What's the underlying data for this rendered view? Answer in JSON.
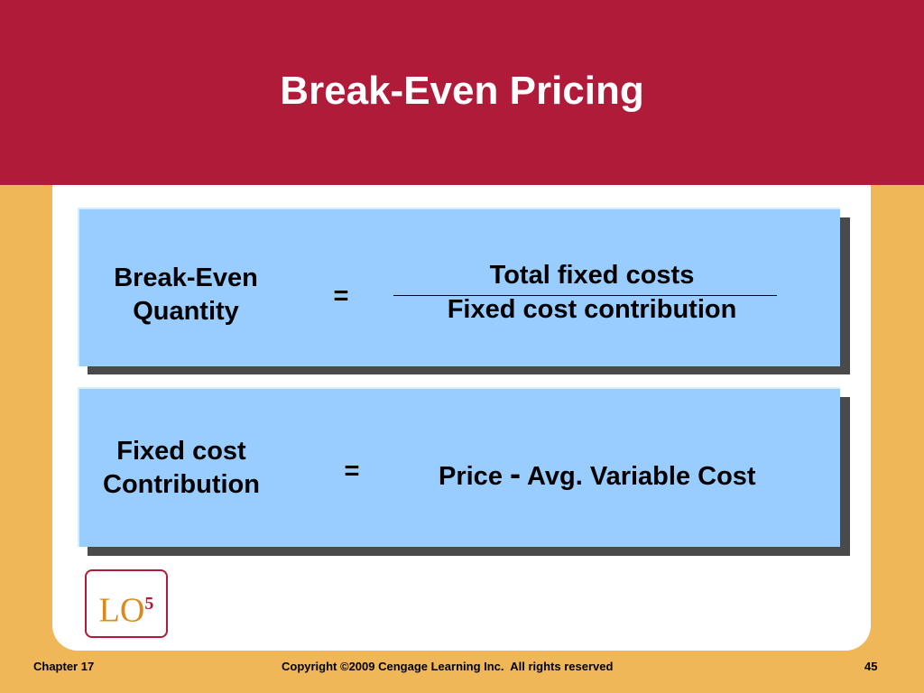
{
  "header": {
    "title": "Break-Even Pricing"
  },
  "formulas": [
    {
      "left": [
        "Break-Even",
        "Quantity"
      ],
      "operator": "=",
      "numerator": "Total fixed costs",
      "denominator": "Fixed cost contribution"
    },
    {
      "left": [
        "Fixed cost",
        "Contribution"
      ],
      "operator": "=",
      "right": [
        "Price",
        "-",
        "Avg. Variable Cost"
      ]
    }
  ],
  "badge": {
    "text": "LO",
    "superscript": "5"
  },
  "footer": {
    "chapter": "Chapter 17",
    "copyright": "Copyright ©2009 Cengage Learning Inc.  All rights reserved",
    "page": "45"
  }
}
